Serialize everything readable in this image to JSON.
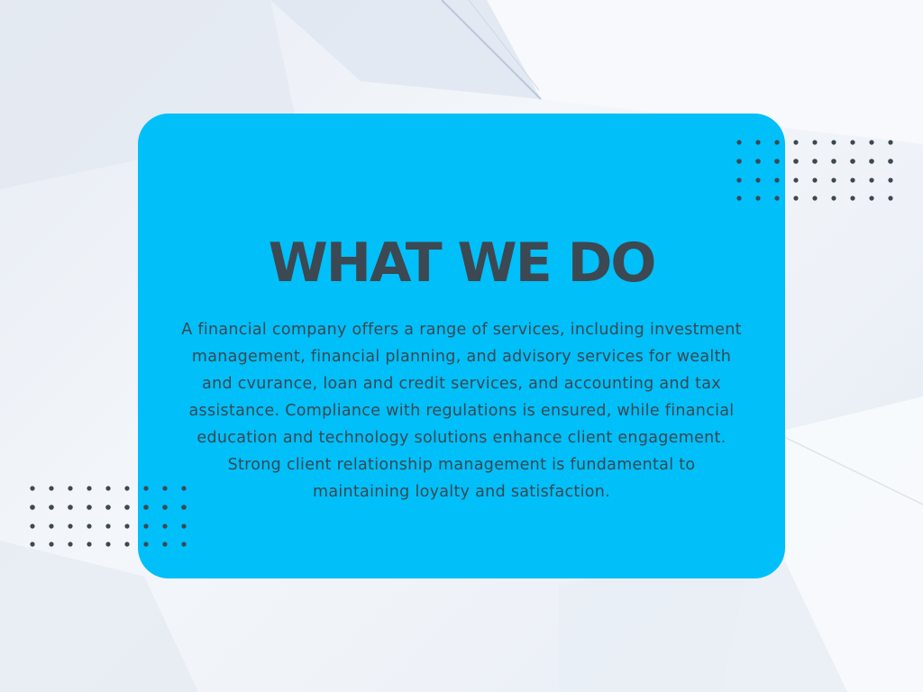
{
  "slide": {
    "title": "WHAT WE DO",
    "body": "A financial company offers a range of services, including investment management, financial planning, and advisory services for wealth and cvurance, loan and credit services, and accounting and tax assistance. Compliance with regulations is ensured, while financial education and technology solutions enhance client engagement. Strong client relationship management is fundamental to maintaining loyalty and satisfaction."
  },
  "colors": {
    "card": "#00bff9",
    "text": "#3c4852",
    "dots": "#3c4852",
    "background": "#eef2f8"
  }
}
